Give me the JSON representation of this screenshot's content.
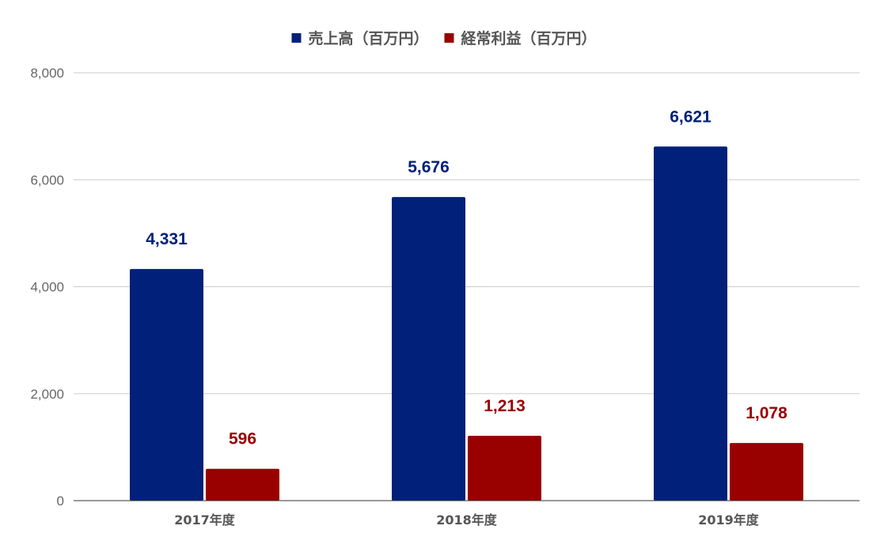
{
  "chart_data": {
    "type": "bar",
    "categories": [
      "2017年度",
      "2018年度",
      "2019年度"
    ],
    "series": [
      {
        "name": "売上高（百万円）",
        "values": [
          4331,
          5676,
          6621
        ],
        "labels": [
          "4,331",
          "5,676",
          "6,621"
        ],
        "color": "#00207a"
      },
      {
        "name": "経常利益（百万円）",
        "values": [
          596,
          1213,
          1078
        ],
        "labels": [
          "596",
          "1,213",
          "1,078"
        ],
        "color": "#990000"
      }
    ],
    "ylim": [
      0,
      8000
    ],
    "yticks": [
      0,
      2000,
      4000,
      6000,
      8000
    ],
    "ytick_labels": [
      "0",
      "2,000",
      "4,000",
      "6,000",
      "8,000"
    ],
    "grid": true,
    "legend_position": "top-center",
    "title": "",
    "xlabel": "",
    "ylabel": ""
  }
}
